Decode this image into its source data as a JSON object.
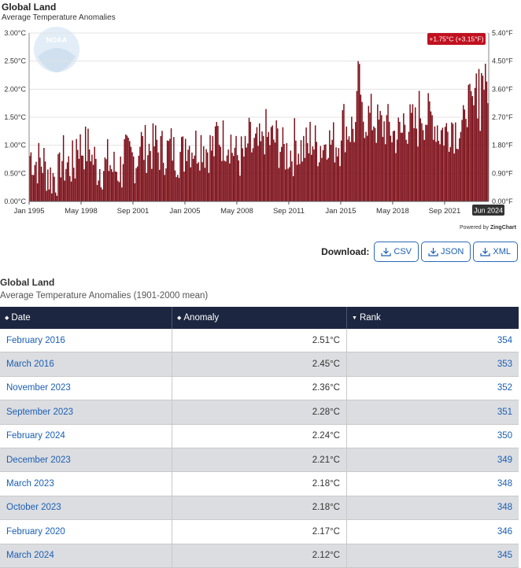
{
  "chart_data": {
    "type": "bar",
    "title": "Global Land",
    "subtitle": "Average Temperature Anomalies",
    "x_start": "Jan 1995",
    "x_end": "Jun 2024",
    "x_tick_labels": [
      "Jan 1995",
      "May 1998",
      "Sep 2001",
      "Jan 2005",
      "May 2008",
      "Sep 2011",
      "Jan 2015",
      "May 2018",
      "Sep 2021"
    ],
    "highlight_label": "Jun 2024",
    "y_left_ticks": [
      "0.00°C",
      "0.50°C",
      "1.00°C",
      "1.50°C",
      "2.00°C",
      "2.50°C",
      "3.00°C"
    ],
    "y_right_ticks": [
      "0.00°F",
      "0.90°F",
      "1.80°F",
      "2.70°F",
      "3.60°F",
      "4.50°F",
      "5.40°F"
    ],
    "ylim": [
      0,
      3
    ],
    "grid": true,
    "value_badge": "+1.75°C (+3.15°F)",
    "bar_color": "#7a0a14",
    "yearly_means": [
      {
        "year": 1995,
        "mean": 0.7
      },
      {
        "year": 1996,
        "mean": 0.45
      },
      {
        "year": 1997,
        "mean": 0.65
      },
      {
        "year": 1998,
        "mean": 0.95
      },
      {
        "year": 1999,
        "mean": 0.62
      },
      {
        "year": 2000,
        "mean": 0.58
      },
      {
        "year": 2001,
        "mean": 0.75
      },
      {
        "year": 2002,
        "mean": 0.95
      },
      {
        "year": 2003,
        "mean": 0.9
      },
      {
        "year": 2004,
        "mean": 0.85
      },
      {
        "year": 2005,
        "mean": 1.0
      },
      {
        "year": 2006,
        "mean": 0.95
      },
      {
        "year": 2007,
        "mean": 1.1
      },
      {
        "year": 2008,
        "mean": 0.8
      },
      {
        "year": 2009,
        "mean": 0.95
      },
      {
        "year": 2010,
        "mean": 1.1
      },
      {
        "year": 2011,
        "mean": 0.88
      },
      {
        "year": 2012,
        "mean": 0.95
      },
      {
        "year": 2013,
        "mean": 1.0
      },
      {
        "year": 2014,
        "mean": 1.05
      },
      {
        "year": 2015,
        "mean": 1.3
      },
      {
        "year": 2016,
        "mean": 1.5
      },
      {
        "year": 2017,
        "mean": 1.35
      },
      {
        "year": 2018,
        "mean": 1.2
      },
      {
        "year": 2019,
        "mean": 1.35
      },
      {
        "year": 2020,
        "mean": 1.5
      },
      {
        "year": 2021,
        "mean": 1.25
      },
      {
        "year": 2022,
        "mean": 1.3
      },
      {
        "year": 2023,
        "mean": 1.65
      },
      {
        "year": 2024,
        "mean": 2.05
      }
    ]
  },
  "colors": {
    "bar": "#7a0a14",
    "header_bg": "#1c2640",
    "link": "#1a5fb4",
    "badge": "#c0111f"
  },
  "powered_by": {
    "prefix": "Powered by",
    "brand": "ZingChart"
  },
  "logo_text": "NOAA",
  "download": {
    "label": "Download:",
    "buttons": [
      {
        "label": "CSV"
      },
      {
        "label": "JSON"
      },
      {
        "label": "XML"
      }
    ]
  },
  "table": {
    "title": "Global Land",
    "subtitle": "Average Temperature Anomalies (1901-2000 mean)",
    "columns": [
      "Date",
      "Anomaly",
      "Rank"
    ],
    "rows": [
      {
        "date": "February 2016",
        "anomaly": "2.51°C",
        "rank": "354"
      },
      {
        "date": "March 2016",
        "anomaly": "2.45°C",
        "rank": "353"
      },
      {
        "date": "November 2023",
        "anomaly": "2.36°C",
        "rank": "352"
      },
      {
        "date": "September 2023",
        "anomaly": "2.28°C",
        "rank": "351"
      },
      {
        "date": "February 2024",
        "anomaly": "2.24°C",
        "rank": "350"
      },
      {
        "date": "December 2023",
        "anomaly": "2.21°C",
        "rank": "349"
      },
      {
        "date": "March 2023",
        "anomaly": "2.18°C",
        "rank": "348"
      },
      {
        "date": "October 2023",
        "anomaly": "2.18°C",
        "rank": "348"
      },
      {
        "date": "February 2020",
        "anomaly": "2.17°C",
        "rank": "346"
      },
      {
        "date": "March 2024",
        "anomaly": "2.12°C",
        "rank": "345"
      }
    ]
  }
}
